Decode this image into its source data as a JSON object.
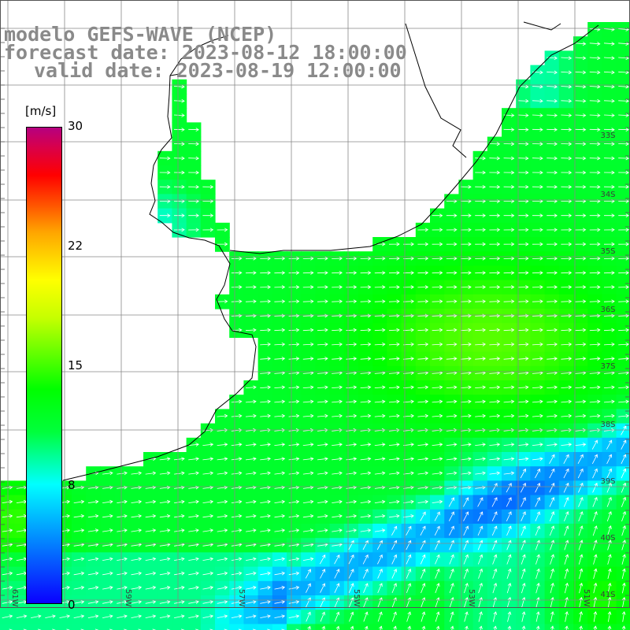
{
  "title": {
    "line1": "modelo GEFS-WAVE (NCEP)",
    "line2": "forecast date: 2023-08-12 18:00:00",
    "line3": "valid date: 2023-08-19 12:00:00"
  },
  "colorbar": {
    "unit": "[m/s]",
    "ticks": [
      {
        "value": 30,
        "label": "30"
      },
      {
        "value": 22,
        "label": "22"
      },
      {
        "value": 15,
        "label": "15"
      },
      {
        "value": 8,
        "label": "8"
      },
      {
        "value": 0,
        "label": "0"
      }
    ],
    "colors": [
      "#0a00ff",
      "#00b8ff",
      "#00ffff",
      "#00ff00",
      "#ffff00",
      "#ffa500",
      "#ff0000",
      "#b50080"
    ]
  },
  "latitude_labels": [
    "33S",
    "34S",
    "35S",
    "36S",
    "37S",
    "38S",
    "39S",
    "40S",
    "41S"
  ],
  "longitude_labels": [
    "61W",
    "59W",
    "57W",
    "55W",
    "53W",
    "51W"
  ],
  "field": "wind speed and direction"
}
